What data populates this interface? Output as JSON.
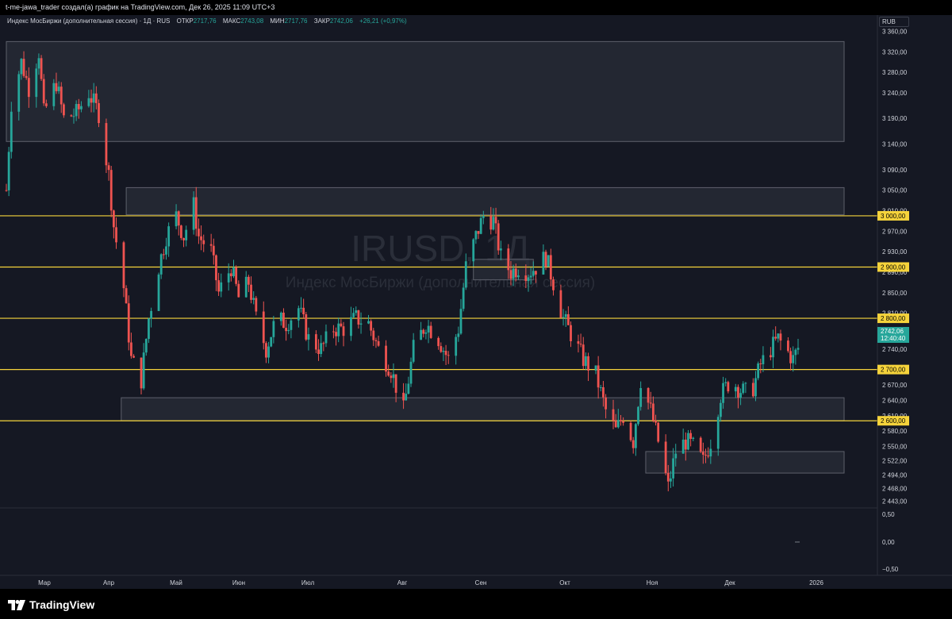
{
  "header": {
    "caption": "t-me-jawa_trader создал(а) график на TradingView.com, Дек 26, 2025 11:09 UTC+3"
  },
  "legend": {
    "title": "Индекс МосБиржи (дополнительная сессия) · 1Д · RUS",
    "open_label": "ОТКР",
    "open_value": "2717,76",
    "high_label": "МАКС",
    "high_value": "2743,08",
    "low_label": "МИН",
    "low_value": "2717,76",
    "close_label": "ЗАКР",
    "close_value": "2742,06",
    "change": "+26,21 (+0,97%)"
  },
  "currency": "RUB",
  "watermark": {
    "symbol": "IRUSD, 1Д",
    "name": "Индекс МосБиржи (дополнительная сессия)"
  },
  "price_axis": {
    "ticks": [
      "3 360,00",
      "3 320,00",
      "3 280,00",
      "3 240,00",
      "3 190,00",
      "3 140,00",
      "3 090,00",
      "3 050,00",
      "3 010,00",
      "2 970,00",
      "2 930,00",
      "2 890,00",
      "2 850,00",
      "2 810,00",
      "2 770,00",
      "2 740,00",
      "2 670,00",
      "2 640,00",
      "2 610,00",
      "2 580,00",
      "2 550,00",
      "2 522,00",
      "2 494,00",
      "2 468,00",
      "2 443,00"
    ],
    "level_badges": [
      "3 000,00",
      "2 900,00",
      "2 800,00",
      "2 700,00",
      "2 600,00"
    ],
    "last_price": "2742,06",
    "countdown": "12:40:40"
  },
  "indicator_axis": {
    "ticks": [
      "0,50",
      "0,00",
      "−0,50"
    ]
  },
  "time_axis": {
    "labels": [
      "Мар",
      "Апр",
      "Май",
      "Июн",
      "Июл",
      "Авг",
      "Сен",
      "Окт",
      "Ноя",
      "Дек",
      "2026"
    ]
  },
  "footer": {
    "brand": "TradingView"
  },
  "colors": {
    "background": "#151823",
    "up": "#26a69a",
    "down": "#ef5350",
    "level_line": "#f5d33b",
    "zone_fill": "#2a2e39",
    "zone_border": "#5d606b"
  },
  "chart_data": {
    "type": "candlestick",
    "x_start": "2025-02-12",
    "x_end": "2025-12-26",
    "y_range": [
      2430,
      3370
    ],
    "horizontal_levels": [
      3000,
      2900,
      2800,
      2700,
      2600
    ],
    "zones": [
      {
        "from": "2025-02-12",
        "to": "2026-01-22",
        "low": 3145,
        "high": 3340
      },
      {
        "from": "2025-04-01",
        "to": "2026-01-22",
        "low": 3002,
        "high": 3055
      },
      {
        "from": "2025-03-30",
        "to": "2026-01-22",
        "low": 2600,
        "high": 2645
      },
      {
        "from": "2025-10-26",
        "to": "2026-01-22",
        "low": 2498,
        "high": 2540
      },
      {
        "from": "2025-08-18",
        "to": "2025-09-11",
        "low": 2875,
        "high": 2915
      }
    ],
    "close_path": [
      [
        "2025-02-12",
        3050
      ],
      [
        "2025-02-14",
        3220
      ],
      [
        "2025-02-18",
        3300
      ],
      [
        "2025-02-21",
        3250
      ],
      [
        "2025-02-25",
        3320
      ],
      [
        "2025-02-27",
        3200
      ],
      [
        "2025-03-04",
        3260
      ],
      [
        "2025-03-07",
        3190
      ],
      [
        "2025-03-12",
        3200
      ],
      [
        "2025-03-17",
        3240
      ],
      [
        "2025-03-21",
        3200
      ],
      [
        "2025-03-25",
        3080
      ],
      [
        "2025-03-27",
        2980
      ],
      [
        "2025-03-31",
        2860
      ],
      [
        "2025-04-03",
        2720
      ],
      [
        "2025-04-07",
        2680
      ],
      [
        "2025-04-10",
        2800
      ],
      [
        "2025-04-14",
        2900
      ],
      [
        "2025-04-17",
        2960
      ],
      [
        "2025-04-21",
        3000
      ],
      [
        "2025-04-24",
        2960
      ],
      [
        "2025-04-28",
        3020
      ],
      [
        "2025-04-30",
        2960
      ],
      [
        "2025-05-05",
        2930
      ],
      [
        "2025-05-08",
        2850
      ],
      [
        "2025-05-13",
        2900
      ],
      [
        "2025-05-16",
        2840
      ],
      [
        "2025-05-20",
        2870
      ],
      [
        "2025-05-23",
        2800
      ],
      [
        "2025-05-27",
        2740
      ],
      [
        "2025-05-31",
        2800
      ],
      [
        "2025-06-04",
        2790
      ],
      [
        "2025-06-09",
        2820
      ],
      [
        "2025-06-13",
        2760
      ],
      [
        "2025-06-18",
        2740
      ],
      [
        "2025-06-23",
        2780
      ],
      [
        "2025-06-27",
        2780
      ],
      [
        "2025-07-02",
        2800
      ],
      [
        "2025-07-07",
        2790
      ],
      [
        "2025-07-11",
        2740
      ],
      [
        "2025-07-16",
        2700
      ],
      [
        "2025-07-21",
        2620
      ],
      [
        "2025-07-25",
        2740
      ],
      [
        "2025-07-30",
        2790
      ],
      [
        "2025-08-04",
        2760
      ],
      [
        "2025-08-08",
        2720
      ],
      [
        "2025-08-12",
        2780
      ],
      [
        "2025-08-15",
        2900
      ],
      [
        "2025-08-19",
        2960
      ],
      [
        "2025-08-22",
        3000
      ],
      [
        "2025-08-26",
        2990
      ],
      [
        "2025-08-29",
        2920
      ],
      [
        "2025-09-02",
        2890
      ],
      [
        "2025-09-05",
        2900
      ],
      [
        "2025-09-09",
        2890
      ],
      [
        "2025-09-12",
        2900
      ],
      [
        "2025-09-16",
        2920
      ],
      [
        "2025-09-19",
        2870
      ],
      [
        "2025-09-23",
        2800
      ],
      [
        "2025-09-27",
        2760
      ],
      [
        "2025-10-01",
        2720
      ],
      [
        "2025-10-06",
        2690
      ],
      [
        "2025-10-10",
        2620
      ],
      [
        "2025-10-14",
        2580
      ],
      [
        "2025-10-17",
        2610
      ],
      [
        "2025-10-21",
        2560
      ],
      [
        "2025-10-24",
        2680
      ],
      [
        "2025-10-28",
        2620
      ],
      [
        "2025-10-31",
        2560
      ],
      [
        "2025-11-04",
        2470
      ],
      [
        "2025-11-07",
        2540
      ],
      [
        "2025-11-11",
        2560
      ],
      [
        "2025-11-14",
        2550
      ],
      [
        "2025-11-18",
        2520
      ],
      [
        "2025-11-21",
        2560
      ],
      [
        "2025-11-25",
        2650
      ],
      [
        "2025-11-29",
        2680
      ],
      [
        "2025-12-03",
        2660
      ],
      [
        "2025-12-07",
        2650
      ],
      [
        "2025-12-11",
        2710
      ],
      [
        "2025-12-15",
        2740
      ],
      [
        "2025-12-18",
        2760
      ],
      [
        "2025-12-21",
        2740
      ],
      [
        "2025-12-24",
        2720
      ],
      [
        "2025-12-26",
        2742
      ]
    ]
  }
}
